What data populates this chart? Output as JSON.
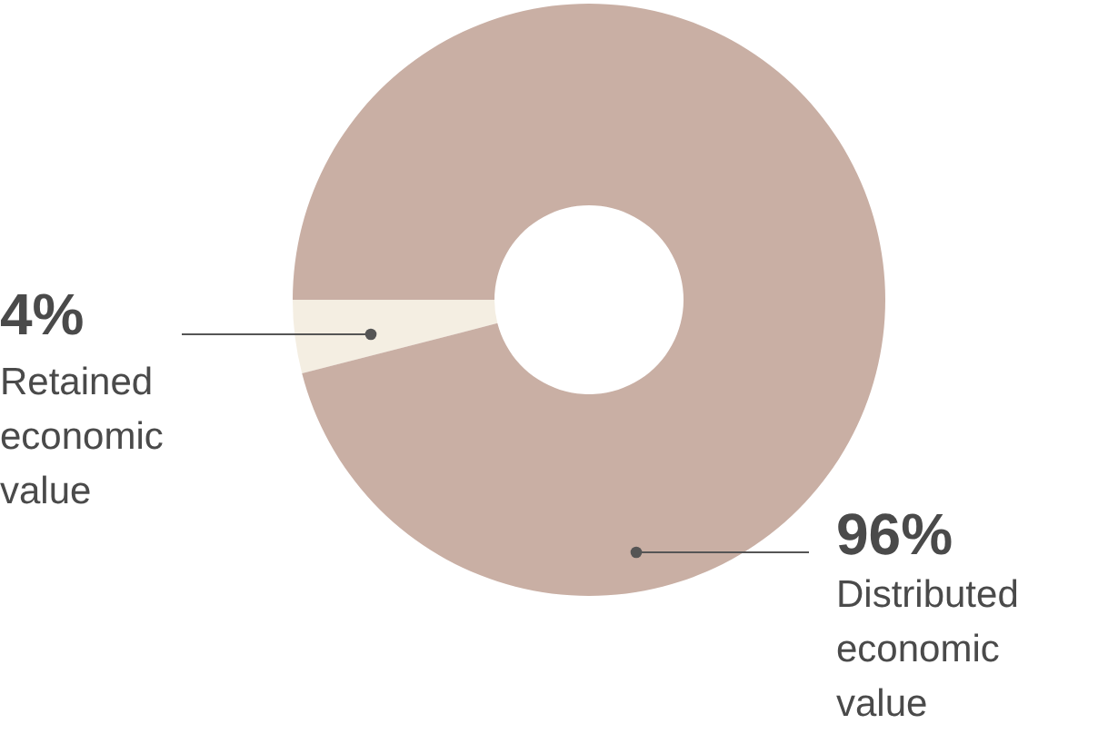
{
  "chart_data": {
    "type": "donut",
    "categories": [
      "Retained economic value",
      "Distributed economic value"
    ],
    "values": [
      4,
      96
    ],
    "colors": [
      "#f4eee2",
      "#c9afa4"
    ],
    "value_labels": [
      "4%",
      "96%"
    ]
  }
}
